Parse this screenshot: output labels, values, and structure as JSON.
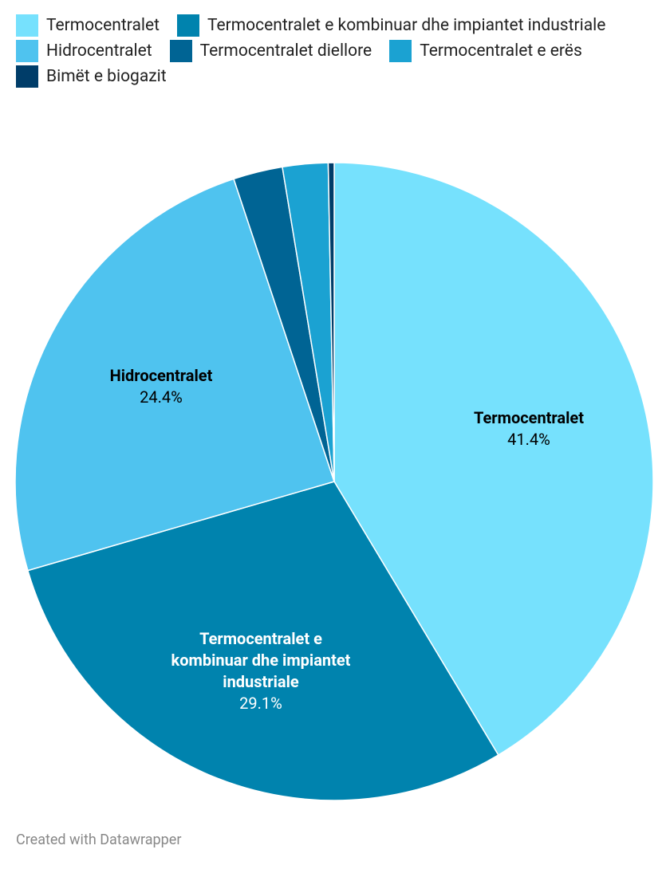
{
  "chart_data": {
    "type": "pie",
    "categories": [
      "Termocentralet",
      "Termocentralet e kombinuar dhe impiantet industriale",
      "Hidrocentralet",
      "Termocentralet diellore",
      "Termocentralet e erës",
      "Bimët e biogazit"
    ],
    "values": [
      41.4,
      29.1,
      24.4,
      2.5,
      2.3,
      0.3
    ],
    "value_labels": [
      "41.4%",
      "29.1%",
      "24.4%",
      null,
      null,
      null
    ],
    "colors": [
      "#76e1fd",
      "#0083ae",
      "#4fc3ef",
      "#006494",
      "#1ba2d2",
      "#003d69"
    ],
    "legend": "top",
    "credit": "Created with Datawrapper"
  }
}
